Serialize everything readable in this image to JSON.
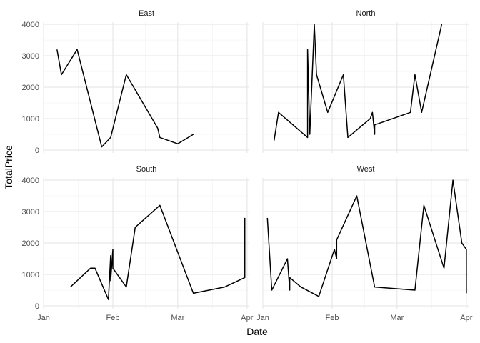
{
  "chart_data": {
    "type": "line",
    "layout": "facet-grid-2x2",
    "xlabel": "Date",
    "ylabel": "TotalPrice",
    "x_scale": "date",
    "xlim": [
      "2024-01-01",
      "2024-04-02"
    ],
    "ylim": [
      -90,
      4070
    ],
    "y_ticks": [
      0,
      1000,
      2000,
      3000,
      4000
    ],
    "y_tick_labels": [
      "0",
      "1000",
      "2000",
      "3000",
      "4000"
    ],
    "x_ticks": [
      "2024-01-01",
      "2024-02-01",
      "2024-03-01",
      "2024-04-01"
    ],
    "x_tick_labels": [
      "Jan",
      "Feb",
      "Mar",
      "Apr"
    ],
    "grid": true,
    "line_color": "#000000",
    "panels": [
      {
        "name": "East",
        "points": [
          [
            "2024-01-07",
            3200
          ],
          [
            "2024-01-09",
            2400
          ],
          [
            "2024-01-16",
            3200
          ],
          [
            "2024-01-27",
            100
          ],
          [
            "2024-01-31",
            400
          ],
          [
            "2024-02-07",
            2400
          ],
          [
            "2024-02-21",
            700
          ],
          [
            "2024-02-22",
            400
          ],
          [
            "2024-03-01",
            200
          ],
          [
            "2024-03-08",
            500
          ]
        ]
      },
      {
        "name": "North",
        "points": [
          [
            "2024-01-06",
            300
          ],
          [
            "2024-01-08",
            1200
          ],
          [
            "2024-01-21",
            400
          ],
          [
            "2024-01-21",
            3200
          ],
          [
            "2024-01-22",
            500
          ],
          [
            "2024-01-24",
            4000
          ],
          [
            "2024-01-25",
            2400
          ],
          [
            "2024-01-30",
            1200
          ],
          [
            "2024-02-06",
            2400
          ],
          [
            "2024-02-08",
            400
          ],
          [
            "2024-02-18",
            1000
          ],
          [
            "2024-02-19",
            1200
          ],
          [
            "2024-02-20",
            500
          ],
          [
            "2024-02-20",
            800
          ],
          [
            "2024-03-07",
            1200
          ],
          [
            "2024-03-09",
            2400
          ],
          [
            "2024-03-12",
            1200
          ],
          [
            "2024-03-21",
            4000
          ]
        ]
      },
      {
        "name": "South",
        "points": [
          [
            "2024-01-13",
            600
          ],
          [
            "2024-01-22",
            1200
          ],
          [
            "2024-01-24",
            1200
          ],
          [
            "2024-01-30",
            200
          ],
          [
            "2024-01-31",
            1600
          ],
          [
            "2024-01-31",
            800
          ],
          [
            "2024-02-01",
            1800
          ],
          [
            "2024-02-01",
            1200
          ],
          [
            "2024-02-07",
            600
          ],
          [
            "2024-02-11",
            2500
          ],
          [
            "2024-02-22",
            3200
          ],
          [
            "2024-03-08",
            400
          ],
          [
            "2024-03-22",
            600
          ],
          [
            "2024-03-31",
            900
          ],
          [
            "2024-03-31",
            2800
          ]
        ]
      },
      {
        "name": "West",
        "points": [
          [
            "2024-01-03",
            2800
          ],
          [
            "2024-01-05",
            500
          ],
          [
            "2024-01-12",
            1500
          ],
          [
            "2024-01-13",
            500
          ],
          [
            "2024-01-13",
            900
          ],
          [
            "2024-01-18",
            600
          ],
          [
            "2024-01-26",
            300
          ],
          [
            "2024-02-02",
            1800
          ],
          [
            "2024-02-03",
            1500
          ],
          [
            "2024-02-03",
            2100
          ],
          [
            "2024-02-12",
            3500
          ],
          [
            "2024-02-20",
            600
          ],
          [
            "2024-03-09",
            500
          ],
          [
            "2024-03-13",
            3200
          ],
          [
            "2024-03-22",
            1200
          ],
          [
            "2024-03-26",
            4000
          ],
          [
            "2024-03-30",
            2000
          ],
          [
            "2024-04-01",
            1800
          ],
          [
            "2024-04-01",
            400
          ]
        ]
      }
    ]
  }
}
